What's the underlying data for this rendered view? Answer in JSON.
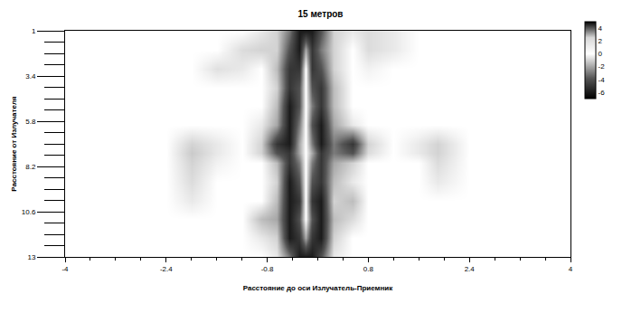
{
  "chart_data": {
    "type": "heatmap",
    "title": "15 метров",
    "x_label": "Расстояние до оси Излучатель-Приемник",
    "y_label": "Расстояние от Излучателя",
    "x": [
      -4,
      -3,
      -2.4,
      -2,
      -1.6,
      -1.2,
      -0.9,
      -0.65,
      -0.45,
      -0.3,
      -0.2,
      -0.1,
      0.05,
      0.25,
      0.55,
      0.8,
      1.2,
      1.6,
      1.9,
      2.4,
      3,
      4
    ],
    "y": [
      1,
      2,
      3,
      4,
      5,
      6,
      7,
      7.5,
      8,
      9,
      10,
      11,
      12,
      13
    ],
    "z": [
      [
        0,
        0,
        0,
        0,
        0,
        0,
        -0.5,
        -1,
        -3,
        -6,
        -6,
        -6,
        -4,
        -1,
        -0.5,
        -0.8,
        -0.5,
        0,
        0,
        0,
        0,
        0
      ],
      [
        0,
        0,
        0,
        0,
        0,
        -0.8,
        -1,
        -1,
        -4,
        -6,
        -2,
        -5,
        -3,
        -1,
        0,
        -0.8,
        -0.5,
        0,
        0,
        0,
        0,
        0
      ],
      [
        0,
        0,
        0,
        0,
        -0.7,
        -0.5,
        0,
        -1.5,
        -5,
        -5,
        0,
        -5,
        -4,
        -1,
        0,
        -0.3,
        0,
        0,
        0,
        0,
        0,
        0
      ],
      [
        0,
        0,
        0,
        0,
        0,
        0,
        0,
        -1,
        -5,
        -4,
        0,
        -4,
        -5,
        -1.5,
        0,
        0,
        0,
        0,
        0,
        0,
        0,
        0
      ],
      [
        0,
        0,
        0,
        0,
        0,
        0,
        0,
        -1.5,
        -6,
        -4,
        0,
        -3,
        -5,
        -1.5,
        0,
        0,
        0,
        0,
        0,
        0,
        0,
        0
      ],
      [
        0,
        0,
        0,
        0,
        0,
        0,
        -0.5,
        -2,
        -6,
        -3,
        0,
        -4,
        -6,
        -2,
        -0.5,
        0,
        0,
        0,
        0,
        0,
        0,
        0
      ],
      [
        0,
        0,
        0,
        -1,
        -0.5,
        0,
        -1,
        -5,
        -6,
        -2,
        0,
        -3,
        -6,
        -3,
        -5,
        -1,
        0,
        -0.5,
        -1,
        0,
        0,
        0
      ],
      [
        0,
        0,
        0,
        -1.2,
        -0.5,
        0,
        -1,
        -4,
        -5,
        -2,
        0,
        -2,
        -5,
        -3,
        -4,
        -0.8,
        0,
        -0.5,
        -1,
        0,
        0,
        0
      ],
      [
        0,
        0,
        0,
        -1,
        -0.3,
        0,
        0,
        -1.5,
        -5,
        -3,
        0,
        -3,
        -5,
        -2,
        -1,
        0,
        0,
        0,
        -0.8,
        0,
        0,
        0
      ],
      [
        0,
        0,
        0,
        -0.8,
        0,
        0,
        0,
        -1,
        -6,
        -4,
        0,
        -4,
        -5,
        -1.5,
        -0.5,
        0,
        0,
        0,
        -0.5,
        0,
        0,
        0
      ],
      [
        0,
        0,
        0,
        -0.5,
        0,
        0,
        0,
        -1.5,
        -6,
        -5,
        0,
        -5,
        -6,
        -1,
        -1.5,
        0,
        0,
        0,
        0,
        0,
        0,
        0
      ],
      [
        0,
        0,
        0,
        0,
        0,
        0,
        -1.5,
        -2,
        -6,
        -4,
        0,
        -4,
        -6,
        -1.5,
        -0.8,
        0,
        0,
        0,
        0,
        0,
        0,
        0
      ],
      [
        0,
        0,
        0,
        0,
        0,
        0,
        -0.5,
        -1,
        -6,
        -5,
        -2,
        -5,
        -6,
        -1,
        0,
        0,
        0,
        0,
        0,
        0,
        0,
        0
      ],
      [
        0,
        0,
        0,
        0,
        0,
        0,
        0,
        -0.5,
        -3,
        -6,
        -6,
        -6,
        -4,
        -0.5,
        0,
        0,
        0,
        0,
        0,
        0,
        0,
        0
      ]
    ],
    "xlim": [
      -4,
      4
    ],
    "xticks": [
      -4,
      -2.4,
      -0.8,
      0.8,
      2.4,
      4
    ],
    "ylim": [
      13,
      1
    ],
    "yticks": [
      1,
      3.4,
      5.8,
      8.2,
      10.6,
      13
    ],
    "zlim": [
      -7,
      5
    ],
    "zticks": [
      4,
      2,
      0,
      -2,
      -4,
      -6
    ],
    "grid": true
  }
}
